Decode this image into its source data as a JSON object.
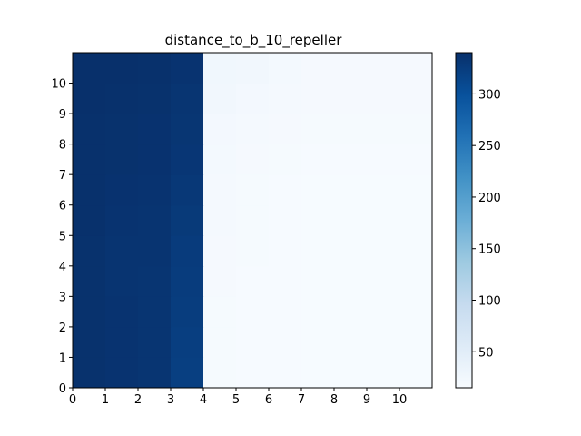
{
  "chart_data": {
    "type": "heatmap",
    "title": "distance_to_b_10_repeller",
    "xlabel": "",
    "ylabel": "",
    "xlim": [
      0,
      11
    ],
    "ylim": [
      0,
      11
    ],
    "x_ticks": [
      "0",
      "1",
      "2",
      "3",
      "4",
      "5",
      "6",
      "7",
      "8",
      "9",
      "10"
    ],
    "y_ticks": [
      "0",
      "1",
      "2",
      "3",
      "4",
      "5",
      "6",
      "7",
      "8",
      "9",
      "10"
    ],
    "colormap": "Blues",
    "colorbar": {
      "min": 15,
      "max": 340,
      "ticks": [
        "50",
        "100",
        "150",
        "200",
        "250",
        "300"
      ]
    },
    "grid_note": "rows listed from y=0 (bottom) to y=10 (top), columns x=0..10",
    "values": [
      [
        338,
        336,
        334,
        322,
        18,
        17,
        17,
        16,
        16,
        16,
        16
      ],
      [
        338,
        336,
        334,
        323,
        18,
        17,
        17,
        16,
        16,
        16,
        16
      ],
      [
        338,
        336,
        334,
        324,
        18,
        17,
        17,
        16,
        16,
        16,
        16
      ],
      [
        338,
        335,
        334,
        325,
        19,
        17,
        17,
        16,
        16,
        16,
        16
      ],
      [
        338,
        335,
        335,
        326,
        19,
        18,
        17,
        16,
        16,
        16,
        16
      ],
      [
        339,
        336,
        335,
        328,
        20,
        18,
        17,
        16,
        16,
        16,
        16
      ],
      [
        339,
        337,
        336,
        330,
        20,
        18,
        17,
        16,
        16,
        16,
        16
      ],
      [
        339,
        338,
        337,
        332,
        21,
        19,
        18,
        17,
        17,
        17,
        17
      ],
      [
        339,
        338,
        337,
        333,
        22,
        20,
        19,
        18,
        18,
        18,
        18
      ],
      [
        340,
        339,
        338,
        334,
        24,
        22,
        20,
        19,
        19,
        19,
        19
      ],
      [
        340,
        340,
        339,
        336,
        26,
        24,
        21,
        19,
        19,
        19,
        19
      ]
    ]
  }
}
